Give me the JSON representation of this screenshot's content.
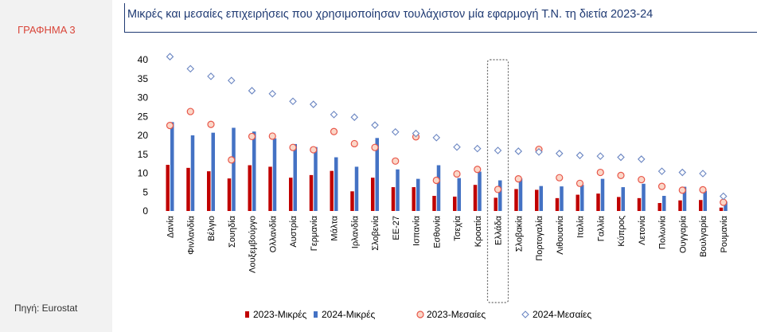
{
  "figure_label": "ΓΡΑΦΗΜΑ 3",
  "source_note": "Πηγή: Eurostat",
  "colors": {
    "small_2023": "#c00000",
    "small_2024": "#4472c4",
    "medium_2023_stroke": "#e8574a",
    "medium_2023_fill": "#fbd7c8",
    "medium_2024_stroke": "#6b86c2",
    "title": "#1f3a73",
    "figure_label": "#d9463a"
  },
  "chart_data": {
    "type": "bar",
    "title": "Μικρές και μεσαίες επιχειρήσεις που χρησιμοποίησαν τουλάχιστον μία εφαρμογή Τ.Ν. τη διετία 2023-24",
    "xlabel": "",
    "ylabel": "",
    "ylim": [
      0,
      40
    ],
    "yticks": [
      0,
      5,
      10,
      15,
      20,
      25,
      30,
      35,
      40
    ],
    "grid": false,
    "legend_position": "bottom",
    "highlighted_category": "Ελλάδα",
    "categories": [
      "Δανία",
      "Φινλανδία",
      "Βέλγιο",
      "Σουηδία",
      "Λουξεμβούργο",
      "Ολλανδία",
      "Αυστρία",
      "Γερμανία",
      "Μάλτα",
      "Ιρλανδία",
      "Σλοβενία",
      "ΕΕ-27",
      "Ισπανία",
      "Εσθονία",
      "Τσεχία",
      "Κροατία",
      "Ελλάδα",
      "Σλοβακία",
      "Πορτογαλία",
      "Λιθουανία",
      "Ιταλία",
      "Γαλλία",
      "Κύπρος",
      "Λετονία",
      "Πολωνία",
      "Ουγγαρία",
      "Βουλγαρία",
      "Ρουμανία"
    ],
    "series": [
      {
        "name": "2023-Μικρές",
        "kind": "bar",
        "values": [
          12.2,
          11.4,
          10.5,
          8.6,
          12.1,
          11.7,
          8.8,
          9.5,
          10.6,
          5.2,
          8.8,
          6.3,
          6.3,
          4.0,
          3.8,
          6.9,
          3.5,
          5.8,
          5.6,
          3.4,
          4.3,
          4.6,
          3.7,
          3.4,
          2.1,
          2.8,
          2.9,
          0.9
        ]
      },
      {
        "name": "2024-Μικρές",
        "kind": "bar",
        "values": [
          23.5,
          20.0,
          20.7,
          22.0,
          21.0,
          19.2,
          17.7,
          16.9,
          14.2,
          11.7,
          19.3,
          11.0,
          8.5,
          12.1,
          8.7,
          10.4,
          8.1,
          8.6,
          6.6,
          6.5,
          6.9,
          8.5,
          6.3,
          7.2,
          4.0,
          6.4,
          5.3,
          2.5
        ]
      },
      {
        "name": "2023-Μεσαίες",
        "kind": "marker",
        "marker": "circle",
        "values": [
          22.6,
          26.3,
          22.9,
          13.5,
          19.7,
          19.8,
          16.8,
          16.2,
          21.0,
          17.8,
          16.8,
          13.2,
          19.6,
          8.1,
          9.8,
          11.0,
          5.7,
          8.5,
          16.3,
          8.8,
          7.3,
          10.2,
          9.4,
          8.3,
          6.5,
          5.5,
          5.6,
          2.3
        ]
      },
      {
        "name": "2024-Μεσαίες",
        "kind": "marker",
        "marker": "diamond",
        "values": [
          40.8,
          37.6,
          35.6,
          34.5,
          31.8,
          31.0,
          29.0,
          28.2,
          25.5,
          24.8,
          22.7,
          20.9,
          20.5,
          19.4,
          16.9,
          16.5,
          16.0,
          15.8,
          15.6,
          15.2,
          14.7,
          14.5,
          14.2,
          13.7,
          10.5,
          10.2,
          9.9,
          3.9
        ]
      }
    ]
  }
}
